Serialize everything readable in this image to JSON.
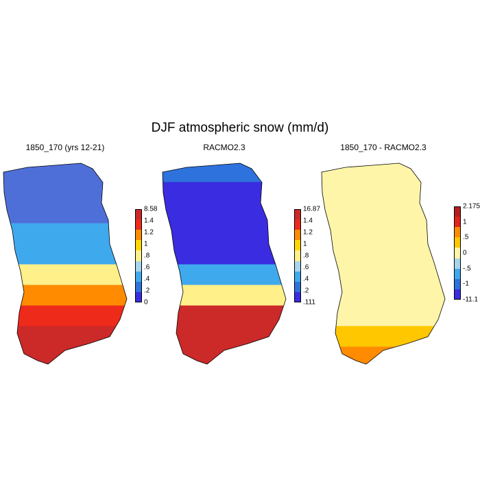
{
  "title": "DJF atmospheric snow (mm/d)",
  "panels": [
    {
      "title": "1850_170 (yrs 12-21)",
      "colorbar": {
        "labels": [
          "8.58",
          "1.4",
          "1.2",
          "1",
          ".8",
          ".6",
          ".4",
          ".2",
          "0"
        ],
        "colors": [
          "#cc2929",
          "#ee2a1a",
          "#ff8c00",
          "#ffd700",
          "#fff089",
          "#a8d5ee",
          "#3fa9ee",
          "#2e72dd",
          "#3a2ce0"
        ]
      },
      "bands": [
        "#cc2929",
        "#cc2929",
        "#ee2a1a",
        "#ff8c00",
        "#fff089",
        "#3fa9ee",
        "#3fa9ee",
        "#4f6fd8",
        "#4f6fd8",
        "#4f6fd8"
      ]
    },
    {
      "title": "RACMO2.3",
      "colorbar": {
        "labels": [
          "16.87",
          "1.4",
          "1.2",
          "1",
          ".8",
          ".6",
          ".4",
          ".2",
          ".111"
        ],
        "colors": [
          "#cc2929",
          "#ee2a1a",
          "#ff8c00",
          "#ffd700",
          "#fff089",
          "#a8d5ee",
          "#3fa9ee",
          "#2e72dd",
          "#3a2ce0"
        ]
      },
      "bands": [
        "#cc2929",
        "#cc2929",
        "#cc2929",
        "#fff089",
        "#3fa9ee",
        "#3a2ce0",
        "#3a2ce0",
        "#3a2ce0",
        "#3a2ce0",
        "#2e72dd"
      ]
    },
    {
      "title": "1850_170 - RACMO2.3",
      "colorbar": {
        "labels": [
          "2.175",
          "1",
          ".5",
          "0",
          "-.5",
          "-1",
          "-11.1"
        ],
        "colors": [
          "#b51e1e",
          "#e0261a",
          "#ff8c00",
          "#ffc700",
          "#fff5a8",
          "#a8d5ee",
          "#3fa9ee",
          "#2e72dd",
          "#3a2ce0"
        ]
      },
      "bands": [
        "#ff8c00",
        "#ffc700",
        "#fff5a8",
        "#fff5a8",
        "#fff5a8",
        "#fff5a8",
        "#fff5a8",
        "#fff5a8",
        "#fff5a8",
        "#fff5a8"
      ]
    }
  ]
}
